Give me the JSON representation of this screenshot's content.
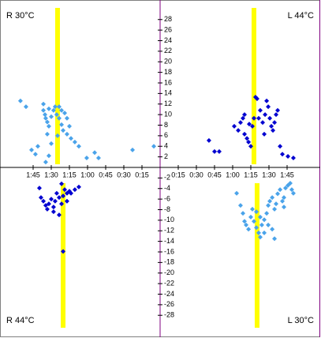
{
  "chart_data": {
    "type": "scatter",
    "xlim": [
      0,
      132
    ],
    "ylim": [
      -32.3,
      31.7
    ],
    "xticks": [
      {
        "value": 15,
        "label": "0:15"
      },
      {
        "value": 30,
        "label": "0:30"
      },
      {
        "value": 45,
        "label": "0:45"
      },
      {
        "value": 60,
        "label": "1:00"
      },
      {
        "value": 75,
        "label": "1:15"
      },
      {
        "value": 90,
        "label": "1:30"
      },
      {
        "value": 105,
        "label": "1:45"
      }
    ],
    "yticks": [
      28,
      26,
      24,
      22,
      20,
      18,
      16,
      14,
      12,
      10,
      8,
      6,
      4,
      2,
      -2,
      -4,
      -6,
      -8,
      -10,
      -12,
      -14,
      -16,
      -18,
      -20,
      -22,
      -24,
      -26,
      -28
    ],
    "marker_color": "#ffff00",
    "series": [
      {
        "name": "R 30°C",
        "side": "left",
        "half": "upper",
        "color": "#4aa3ea",
        "marker_x": 84.8,
        "x": [
          115.5,
          110.9,
          96.5,
          95.2,
          94.6,
          93.3,
          92.0,
          90.0,
          88.1,
          86.8,
          85.5,
          83.5,
          81.5,
          80.2,
          77.0,
          75.0,
          73.7,
          70.5,
          93.3,
          103.1,
          106.3,
          101.1,
          90.0,
          54.1,
          50.9,
          22.8,
          5.2,
          96.5,
          92.0,
          83.5,
          81.5,
          78.9,
          77.0,
          84.8,
          67.2,
          94.6,
          92.0,
          60.7
        ],
        "y": [
          12.6,
          11.5,
          10.8,
          10.0,
          9.3,
          8.6,
          7.8,
          9.6,
          10.8,
          11.5,
          10.0,
          9.3,
          8.1,
          7.0,
          6.3,
          7.8,
          5.5,
          4.8,
          6.3,
          2.5,
          3.3,
          4.0,
          4.5,
          2.8,
          1.8,
          3.3,
          4.0,
          12.0,
          11.1,
          11.5,
          10.8,
          10.3,
          9.3,
          6.0,
          4.0,
          1.0,
          2.2,
          1.8
        ]
      },
      {
        "name": "L 44°C",
        "side": "right",
        "half": "upper",
        "color": "#0000d0",
        "marker_x": 77.6,
        "x": [
          40.4,
          45.0,
          48.9,
          61.3,
          64.6,
          66.5,
          68.5,
          69.8,
          71.8,
          73.1,
          75.0,
          76.3,
          77.6,
          78.9,
          80.2,
          82.8,
          84.8,
          86.8,
          88.1,
          89.4,
          90.7,
          92.0,
          93.3,
          94.6,
          95.9,
          97.2,
          99.2,
          101.1,
          105.7,
          110.2,
          73.7,
          81.5,
          69.8,
          86.1
        ],
        "y": [
          5.1,
          3.0,
          3.0,
          7.8,
          7.0,
          8.5,
          9.3,
          6.3,
          5.5,
          4.8,
          4.0,
          7.8,
          9.3,
          13.3,
          13.0,
          10.8,
          8.5,
          10.0,
          12.6,
          11.5,
          9.3,
          7.8,
          7.0,
          8.5,
          10.0,
          10.8,
          4.0,
          2.5,
          2.1,
          1.8,
          8.2,
          9.3,
          10.0,
          6.3
        ]
      },
      {
        "name": "R 44°C",
        "side": "left",
        "half": "lower",
        "color": "#0000d0",
        "marker_x": 80.2,
        "x": [
          99.8,
          98.5,
          96.5,
          94.6,
          93.3,
          92.0,
          90.0,
          88.1,
          86.8,
          85.5,
          83.5,
          81.5,
          80.2,
          78.9,
          77.0,
          75.0,
          73.7,
          70.5,
          67.2,
          81.5,
          83.5,
          80.2,
          88.1,
          77.0
        ],
        "y": [
          -3.9,
          -5.7,
          -6.4,
          -7.2,
          -7.9,
          -6.9,
          -6.0,
          -7.5,
          -6.4,
          -4.9,
          -5.7,
          -6.9,
          -5.4,
          -4.2,
          -4.9,
          -4.5,
          -4.9,
          -4.2,
          -3.7,
          -3.1,
          -9.0,
          -15.9,
          -8.4,
          -6.4
        ]
      },
      {
        "name": "L 30°C",
        "side": "right",
        "half": "lower",
        "color": "#4aa3ea",
        "marker_x": 80.2,
        "x": [
          63.3,
          66.5,
          68.5,
          69.8,
          71.1,
          73.1,
          75.0,
          76.3,
          77.6,
          79.6,
          81.5,
          82.8,
          84.1,
          86.1,
          88.1,
          89.4,
          90.7,
          92.7,
          94.6,
          95.9,
          97.2,
          99.2,
          101.1,
          102.4,
          103.7,
          105.7,
          107.6,
          108.9,
          110.2,
          92.7,
          94.6,
          89.4,
          86.1,
          82.8,
          79.6,
          102.4
        ],
        "y": [
          -4.9,
          -7.2,
          -8.7,
          -10.2,
          -10.9,
          -11.7,
          -9.4,
          -7.9,
          -10.2,
          -11.4,
          -12.4,
          -13.2,
          -10.9,
          -9.9,
          -8.7,
          -7.2,
          -6.4,
          -5.7,
          -7.9,
          -6.9,
          -5.0,
          -4.2,
          -6.4,
          -5.7,
          -3.9,
          -3.4,
          -3.0,
          -4.2,
          -4.9,
          -11.7,
          -13.5,
          -10.9,
          -12.4,
          -9.4,
          -8.4,
          -7.5
        ]
      }
    ]
  }
}
